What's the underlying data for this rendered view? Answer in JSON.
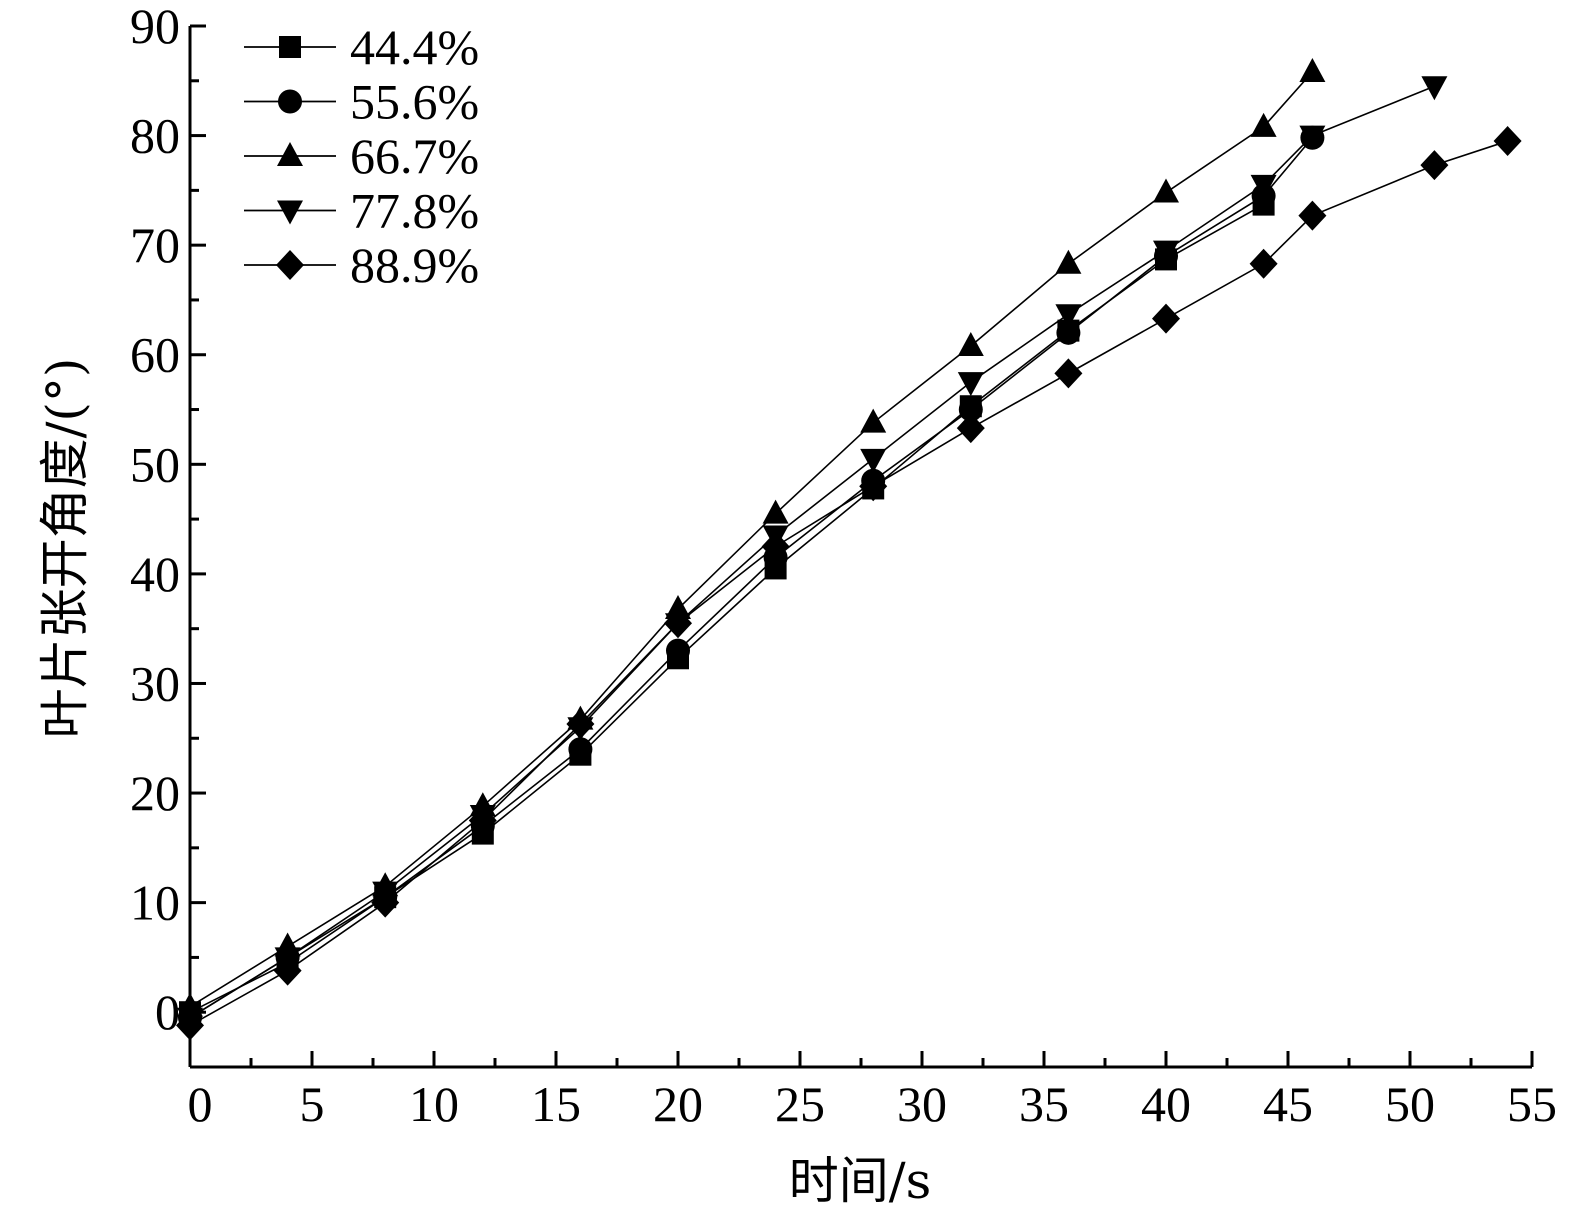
{
  "chart_data": {
    "type": "line",
    "title": "",
    "xlabel": "时间/s",
    "ylabel": "叶片张开角度/(°)",
    "xlim": [
      0,
      55
    ],
    "ylim": [
      -5,
      90
    ],
    "xticks": [
      0,
      5,
      10,
      15,
      20,
      25,
      30,
      35,
      40,
      45,
      50,
      55
    ],
    "xtick_labels": [
      "0",
      "5",
      "10",
      "15",
      "20",
      "25",
      "30",
      "35",
      "40",
      "45",
      "50",
      "55"
    ],
    "yticks": [
      0,
      10,
      20,
      30,
      40,
      50,
      60,
      70,
      80,
      90
    ],
    "ytick_labels": [
      "0",
      "10",
      "20",
      "30",
      "40",
      "50",
      "60",
      "70",
      "80",
      "90"
    ],
    "grid": false,
    "legend_position": "top-left",
    "line_color": "#000000",
    "series": [
      {
        "name": "44.4%",
        "marker": "square",
        "x": [
          0,
          4,
          8,
          12,
          16,
          20,
          24,
          28,
          32,
          36,
          40,
          44
        ],
        "y": [
          0,
          4.5,
          10.5,
          16.3,
          23.5,
          32.3,
          40.5,
          47.8,
          55.3,
          62.2,
          68.7,
          73.7
        ]
      },
      {
        "name": "55.6%",
        "marker": "circle",
        "x": [
          0,
          4,
          8,
          12,
          16,
          20,
          24,
          28,
          32,
          36,
          40,
          44,
          46
        ],
        "y": [
          -0.5,
          5,
          10.5,
          17,
          24,
          33,
          41.5,
          48.5,
          55,
          62,
          69,
          74.5,
          79.8
        ]
      },
      {
        "name": "66.7%",
        "marker": "triangle-up",
        "x": [
          0,
          4,
          8,
          12,
          16,
          20,
          24,
          28,
          32,
          36,
          40,
          44,
          46
        ],
        "y": [
          0.5,
          6,
          11.5,
          18.8,
          26.7,
          36.8,
          45.5,
          53.8,
          60.8,
          68.3,
          74.8,
          80.8,
          85.8
        ]
      },
      {
        "name": "77.8%",
        "marker": "triangle-down",
        "x": [
          0,
          4,
          8,
          12,
          16,
          20,
          24,
          28,
          32,
          36,
          40,
          44,
          46,
          51
        ],
        "y": [
          -0.5,
          5,
          11,
          18,
          26,
          35.5,
          43.5,
          50.5,
          57.5,
          63.7,
          69.5,
          75.5,
          80,
          84.5
        ]
      },
      {
        "name": "88.9%",
        "marker": "diamond",
        "x": [
          0,
          4,
          8,
          12,
          16,
          20,
          24,
          28,
          32,
          36,
          40,
          44,
          46,
          51,
          54
        ],
        "y": [
          -1.2,
          3.8,
          10,
          17.5,
          26.3,
          35.5,
          42.5,
          48,
          53.3,
          58.3,
          63.3,
          68.3,
          72.7,
          77.3,
          79.5
        ]
      }
    ]
  }
}
